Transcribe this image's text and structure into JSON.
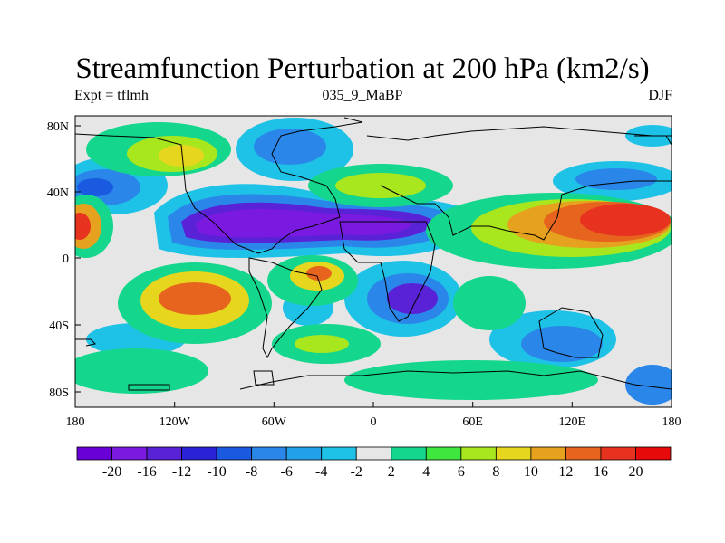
{
  "title": "Streamfunction Perturbation at 200 hPa (km2/s)",
  "subtitle_left": "Expt = tflmh",
  "subtitle_center": "035_9_MaBP",
  "subtitle_right": "DJF",
  "x_ticks": [
    "180",
    "120W",
    "60W",
    "0",
    "60E",
    "120E",
    "180"
  ],
  "y_ticks": [
    "80N",
    "40N",
    "0",
    "40S",
    "80S"
  ],
  "colorbar": {
    "colors": [
      "#6a00d8",
      "#7a1ae0",
      "#5a22d6",
      "#2a22d6",
      "#1a5ae0",
      "#2a86e8",
      "#22a0e8",
      "#1ec2e6",
      "#e6e6e6",
      "#14d68c",
      "#3ee63e",
      "#a8e61e",
      "#e6d61e",
      "#e6a21e",
      "#e6641e",
      "#e6321e",
      "#e60a0a"
    ],
    "labels": [
      "-20",
      "-16",
      "-12",
      "-10",
      "-8",
      "-6",
      "-4",
      "-2",
      "2",
      "4",
      "6",
      "8",
      "10",
      "12",
      "16",
      "20"
    ]
  }
}
